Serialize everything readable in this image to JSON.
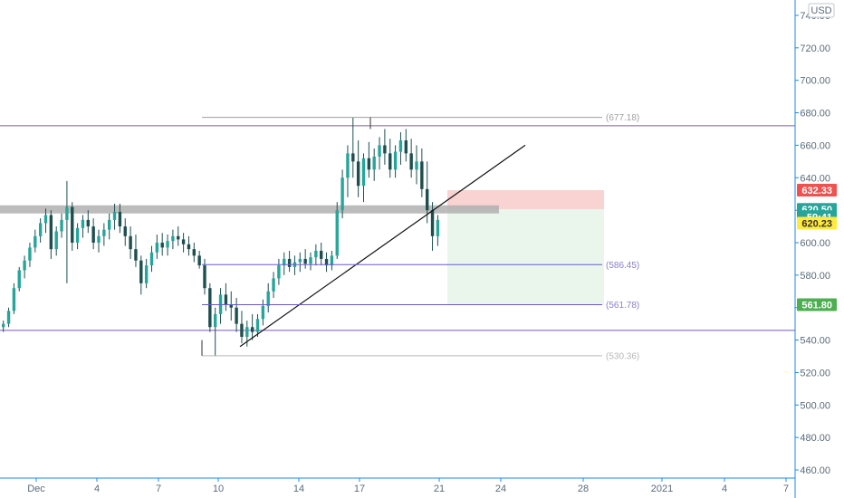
{
  "colors": {
    "up": "#26a69a",
    "down": "#1f4e4f",
    "wick": "#1f4e4f",
    "axis_line": "#1e88e5",
    "resistance": "#7e57c2",
    "level": "#6a5acd",
    "stop_zone": "#f8c7c7",
    "target_zone": "#e8f5e9",
    "grey_band": "#b0b0b0"
  },
  "chart_data": {
    "type": "candlestick",
    "currency": "USD",
    "ylim": [
      455,
      745
    ],
    "y_ticks": [
      "740.00",
      "720.00",
      "700.00",
      "680.00",
      "660.00",
      "640.00",
      "620.00",
      "600.00",
      "580.00",
      "560.00",
      "540.00",
      "520.00",
      "500.00",
      "480.00",
      "460.00"
    ],
    "x_ticks": [
      "Dec",
      "4",
      "7",
      "10",
      "14",
      "17",
      "21",
      "24",
      "28",
      "2021",
      "4",
      "7"
    ],
    "price_badges": [
      {
        "label": "632.33",
        "value": 632.33,
        "color": "#ef5350",
        "text_color": "#ffffff"
      },
      {
        "label": "620.50",
        "value": 620.5,
        "color": "#26a69a",
        "text_color": "#ffffff"
      },
      {
        "label": "59:41",
        "value": 616.0,
        "color": "#26a69a",
        "text_color": "#ffffff"
      },
      {
        "label": "620.23",
        "value": 612.0,
        "color": "#ffeb3b",
        "text_color": "#333333"
      },
      {
        "label": "561.80",
        "value": 561.8,
        "color": "#4caf50",
        "text_color": "#ffffff"
      }
    ],
    "level_labels": [
      {
        "label": "(677.18)",
        "value": 677.18,
        "color": "#a0a0a0"
      },
      {
        "label": "(586.45)",
        "value": 586.45,
        "color": "#8a80c8"
      },
      {
        "label": "(561.78)",
        "value": 561.78,
        "color": "#8a80c8"
      },
      {
        "label": "(530.36)",
        "value": 530.36,
        "color": "#b8b8b8"
      }
    ],
    "horizontal_lines": [
      672,
      546
    ],
    "zones": {
      "stop": [
        620.5,
        632.33
      ],
      "target": [
        561.8,
        620.5
      ],
      "grey_band": [
        618,
        623
      ]
    },
    "candles": [
      [
        548,
        552,
        545,
        550
      ],
      [
        550,
        560,
        548,
        558
      ],
      [
        558,
        575,
        556,
        572
      ],
      [
        572,
        585,
        570,
        583
      ],
      [
        583,
        592,
        578,
        589
      ],
      [
        589,
        600,
        585,
        597
      ],
      [
        597,
        608,
        594,
        604
      ],
      [
        604,
        615,
        600,
        612
      ],
      [
        612,
        621,
        606,
        617
      ],
      [
        617,
        620,
        590,
        596
      ],
      [
        596,
        610,
        592,
        607
      ],
      [
        607,
        618,
        603,
        614
      ],
      [
        614,
        638,
        575,
        622
      ],
      [
        622,
        625,
        595,
        600
      ],
      [
        600,
        612,
        596,
        609
      ],
      [
        609,
        617,
        603,
        614
      ],
      [
        614,
        620,
        606,
        610
      ],
      [
        610,
        615,
        596,
        600
      ],
      [
        600,
        608,
        594,
        604
      ],
      [
        604,
        612,
        598,
        608
      ],
      [
        608,
        618,
        602,
        614
      ],
      [
        614,
        624,
        608,
        619
      ],
      [
        619,
        624,
        606,
        610
      ],
      [
        610,
        615,
        598,
        604
      ],
      [
        604,
        610,
        590,
        596
      ],
      [
        596,
        605,
        585,
        589
      ],
      [
        589,
        592,
        568,
        575
      ],
      [
        575,
        590,
        572,
        586
      ],
      [
        586,
        598,
        582,
        594
      ],
      [
        594,
        605,
        590,
        600
      ],
      [
        600,
        606,
        592,
        597
      ],
      [
        597,
        605,
        592,
        601
      ],
      [
        601,
        608,
        596,
        604
      ],
      [
        604,
        610,
        598,
        602
      ],
      [
        602,
        606,
        594,
        599
      ],
      [
        599,
        604,
        592,
        596
      ],
      [
        596,
        600,
        588,
        592
      ],
      [
        592,
        595,
        584,
        586
      ],
      [
        586,
        590,
        568,
        572
      ],
      [
        572,
        575,
        545,
        548
      ],
      [
        548,
        560,
        530,
        556
      ],
      [
        556,
        572,
        550,
        568
      ],
      [
        568,
        575,
        558,
        562
      ],
      [
        562,
        570,
        552,
        560
      ],
      [
        560,
        566,
        545,
        550
      ],
      [
        550,
        558,
        538,
        542
      ],
      [
        542,
        552,
        536,
        548
      ],
      [
        548,
        556,
        540,
        545
      ],
      [
        545,
        556,
        542,
        553
      ],
      [
        553,
        565,
        549,
        561
      ],
      [
        561,
        575,
        557,
        570
      ],
      [
        570,
        582,
        566,
        578
      ],
      [
        578,
        590,
        574,
        586
      ],
      [
        586,
        594,
        580,
        590
      ],
      [
        590,
        595,
        582,
        585
      ],
      [
        585,
        592,
        580,
        588
      ],
      [
        588,
        594,
        582,
        590
      ],
      [
        590,
        596,
        584,
        587
      ],
      [
        587,
        594,
        583,
        591
      ],
      [
        591,
        599,
        586,
        595
      ],
      [
        595,
        600,
        586,
        590
      ],
      [
        590,
        594,
        582,
        586
      ],
      [
        586,
        595,
        583,
        592
      ],
      [
        592,
        625,
        590,
        620
      ],
      [
        620,
        645,
        615,
        640
      ],
      [
        640,
        660,
        628,
        655
      ],
      [
        655,
        677,
        640,
        650
      ],
      [
        650,
        663,
        628,
        635
      ],
      [
        635,
        655,
        625,
        652
      ],
      [
        652,
        662,
        640,
        645
      ],
      [
        645,
        658,
        638,
        653
      ],
      [
        653,
        665,
        645,
        660
      ],
      [
        660,
        670,
        648,
        655
      ],
      [
        655,
        664,
        640,
        645
      ],
      [
        645,
        660,
        640,
        656
      ],
      [
        656,
        668,
        648,
        663
      ],
      [
        663,
        670,
        650,
        655
      ],
      [
        655,
        664,
        640,
        645
      ],
      [
        645,
        660,
        636,
        650
      ],
      [
        650,
        658,
        628,
        633
      ],
      [
        633,
        650,
        612,
        620
      ],
      [
        620,
        625,
        595,
        604
      ],
      [
        604,
        617,
        598,
        614
      ]
    ]
  }
}
